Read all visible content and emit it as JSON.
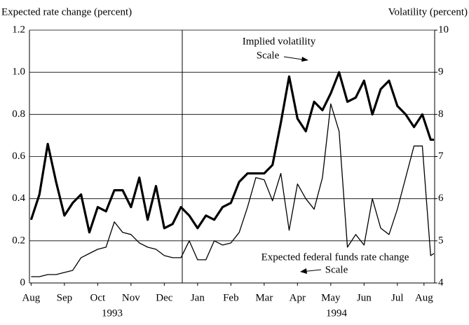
{
  "chart_data": {
    "type": "line",
    "y_label": "Expected rate change (percent)",
    "y2_label": "Volatility (percent)",
    "annotations": [
      "Implied volatility",
      "Scale",
      "Expected federal funds rate change",
      "Scale"
    ],
    "years": [
      "1993",
      "1994"
    ],
    "x": [
      0.5,
      0.75,
      1.0,
      1.25,
      1.5,
      1.75,
      2.0,
      2.25,
      2.5,
      2.75,
      3.0,
      3.25,
      3.5,
      3.75,
      4.0,
      4.25,
      4.5,
      4.75,
      5.0,
      5.25,
      5.5,
      5.75,
      6.0,
      6.25,
      6.5,
      6.75,
      7.0,
      7.25,
      7.5,
      7.75,
      8.0,
      8.25,
      8.5,
      8.75,
      9.0,
      9.25,
      9.5,
      9.75,
      10.0,
      10.25,
      10.5,
      10.75,
      11.0,
      11.25,
      11.5,
      11.75,
      12.0,
      12.25,
      12.5,
      12.6
    ],
    "xlim": [
      0.45,
      12.62
    ],
    "xticks": [
      {
        "value": 0.5,
        "label": "Aug"
      },
      {
        "value": 1.5,
        "label": "Sep"
      },
      {
        "value": 2.5,
        "label": "Oct"
      },
      {
        "value": 3.5,
        "label": "Nov"
      },
      {
        "value": 4.5,
        "label": "Dec"
      },
      {
        "value": 5.5,
        "label": "Jan"
      },
      {
        "value": 6.5,
        "label": "Feb"
      },
      {
        "value": 7.5,
        "label": "Mar"
      },
      {
        "value": 8.5,
        "label": "Apr"
      },
      {
        "value": 9.5,
        "label": "May"
      },
      {
        "value": 10.5,
        "label": "Jun"
      },
      {
        "value": 11.5,
        "label": "Jul"
      },
      {
        "value": 12.3,
        "label": "Aug"
      }
    ],
    "ylim": [
      0,
      1.2
    ],
    "yticks": [
      0,
      0.2,
      0.4,
      0.6,
      0.8,
      {
        "value": 1.0,
        "label": "1.0"
      },
      1.2
    ],
    "y2lim": [
      4,
      10
    ],
    "y2ticks": [
      4,
      5,
      6,
      7,
      8,
      9,
      10
    ],
    "grid": true,
    "series": [
      {
        "name": "Implied volatility",
        "color": "#000000",
        "axis": "y2",
        "width": 3.2,
        "values": [
          5.5,
          6.1,
          7.3,
          6.4,
          5.6,
          5.9,
          6.1,
          5.2,
          5.8,
          5.7,
          6.2,
          6.2,
          5.8,
          6.5,
          5.5,
          6.3,
          5.3,
          5.4,
          5.8,
          5.6,
          5.3,
          5.6,
          5.5,
          5.8,
          5.9,
          6.4,
          6.6,
          6.6,
          6.6,
          6.8,
          7.8,
          8.9,
          7.9,
          7.6,
          8.3,
          8.1,
          8.5,
          9.0,
          8.3,
          8.4,
          8.8,
          8.0,
          8.6,
          8.8,
          8.2,
          8.0,
          7.7,
          8.0,
          7.4,
          7.4
        ]
      },
      {
        "name": "Expected federal funds rate change",
        "color": "#000000",
        "axis": "y",
        "width": 1.3,
        "values": [
          0.03,
          0.03,
          0.04,
          0.04,
          0.05,
          0.06,
          0.12,
          0.14,
          0.16,
          0.17,
          0.29,
          0.24,
          0.23,
          0.19,
          0.17,
          0.16,
          0.13,
          0.12,
          0.12,
          0.2,
          0.11,
          0.11,
          0.2,
          0.18,
          0.19,
          0.24,
          0.36,
          0.5,
          0.49,
          0.39,
          0.52,
          0.25,
          0.47,
          0.4,
          0.35,
          0.5,
          0.85,
          0.72,
          0.17,
          0.23,
          0.18,
          0.4,
          0.26,
          0.23,
          0.35,
          0.5,
          0.65,
          0.65,
          0.13,
          0.14
        ]
      }
    ]
  }
}
